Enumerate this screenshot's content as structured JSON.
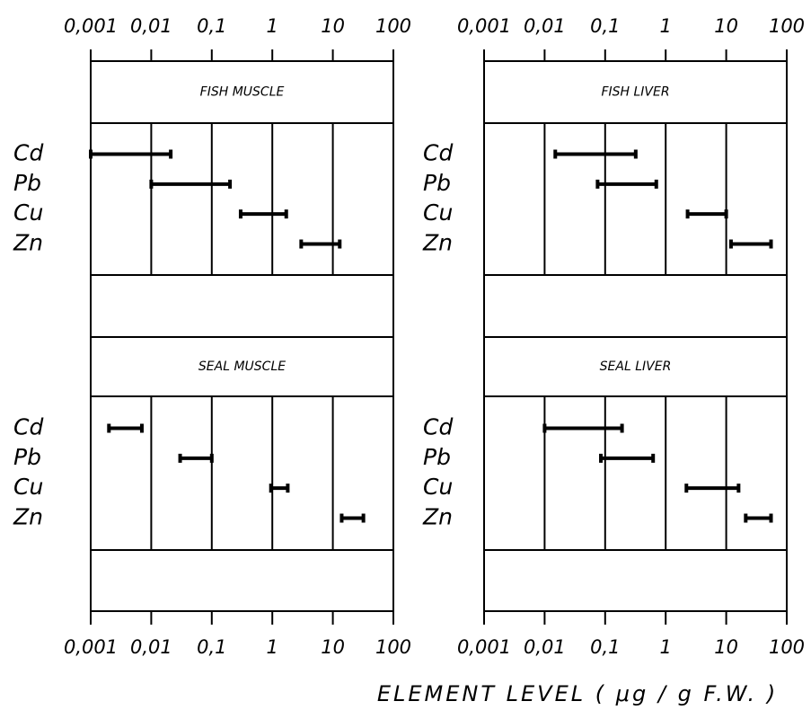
{
  "xlabel": "ELEMENT LEVEL ( μg / g F.W. )",
  "chart_data": [
    {
      "type": "range",
      "title": "FISH MUSCLE",
      "categories": [
        "Cd",
        "Pb",
        "Cu",
        "Zn"
      ],
      "low": [
        0.001,
        0.01,
        0.3,
        3
      ],
      "high": [
        0.021,
        0.2,
        1.7,
        13
      ],
      "color": "#000000",
      "log_x": true,
      "grid": true,
      "xaxis_position": "top",
      "xlim": [
        0.001,
        100
      ],
      "xticks": [
        {
          "value": 0.001,
          "label": "0,001"
        },
        {
          "value": 0.01,
          "label": "0,01"
        },
        {
          "value": 0.1,
          "label": "0,1"
        },
        1,
        10,
        100
      ]
    },
    {
      "type": "range",
      "title": "FISH LIVER",
      "categories": [
        "Cd",
        "Pb",
        "Cu",
        "Zn"
      ],
      "low": [
        0.015,
        0.075,
        2.3,
        12
      ],
      "high": [
        0.32,
        0.7,
        10,
        55
      ],
      "color": "#000000",
      "log_x": true,
      "grid": true,
      "xaxis_position": "top",
      "xlim": [
        0.001,
        100
      ],
      "xticks": [
        {
          "value": 0.001,
          "label": "0,001"
        },
        {
          "value": 0.01,
          "label": "0,01"
        },
        {
          "value": 0.1,
          "label": "0,1"
        },
        1,
        10,
        100
      ]
    },
    {
      "type": "range",
      "title": "SEAL MUSCLE",
      "categories": [
        "Cd",
        "Pb",
        "Cu",
        "Zn"
      ],
      "low": [
        0.002,
        0.03,
        0.95,
        14
      ],
      "high": [
        0.007,
        0.1,
        1.8,
        32
      ],
      "color": "#000000",
      "log_x": true,
      "grid": true,
      "xaxis_position": "bottom",
      "xlim": [
        0.001,
        100
      ],
      "xticks": [
        {
          "value": 0.001,
          "label": "0,001"
        },
        {
          "value": 0.01,
          "label": "0,01"
        },
        {
          "value": 0.1,
          "label": "0,1"
        },
        1,
        10,
        100
      ]
    },
    {
      "type": "range",
      "title": "SEAL LIVER",
      "categories": [
        "Cd",
        "Pb",
        "Cu",
        "Zn"
      ],
      "low": [
        0.01,
        0.085,
        2.2,
        21
      ],
      "high": [
        0.19,
        0.62,
        16,
        55
      ],
      "color": "#000000",
      "log_x": true,
      "grid": true,
      "xaxis_position": "bottom",
      "xlim": [
        0.001,
        100
      ],
      "xticks": [
        {
          "value": 0.001,
          "label": "0,001"
        },
        {
          "value": 0.01,
          "label": "0,01"
        },
        {
          "value": 0.1,
          "label": "0,1"
        },
        1,
        10,
        100
      ]
    }
  ]
}
